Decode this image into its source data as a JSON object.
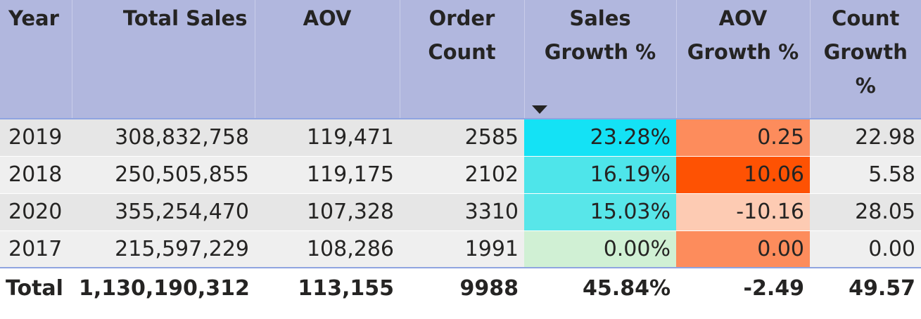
{
  "headers": {
    "year": "Year",
    "total_sales": "Total Sales",
    "aov": "AOV",
    "order_count": "Order Count",
    "sales_growth": "Sales Growth %",
    "aov_growth": "AOV Growth %",
    "count_growth": "Count Growth %"
  },
  "rows": [
    {
      "year": "2019",
      "total_sales": "308,832,758",
      "aov": "119,471",
      "order_count": "2585",
      "sales_growth": "23.28%",
      "aov_growth": "0.25",
      "count_growth": "22.98",
      "sales_growth_color": "#14e2f5",
      "aov_growth_color": "#fd8c5c"
    },
    {
      "year": "2018",
      "total_sales": "250,505,855",
      "aov": "119,175",
      "order_count": "2102",
      "sales_growth": "16.19%",
      "aov_growth": "10.06",
      "count_growth": "5.58",
      "sales_growth_color": "#4ee5ea",
      "aov_growth_color": "#fe5203"
    },
    {
      "year": "2020",
      "total_sales": "355,254,470",
      "aov": "107,328",
      "order_count": "3310",
      "sales_growth": "15.03%",
      "aov_growth": "-10.16",
      "count_growth": "28.05",
      "sales_growth_color": "#58e6e9",
      "aov_growth_color": "#fdcbb3"
    },
    {
      "year": "2017",
      "total_sales": "215,597,229",
      "aov": "108,286",
      "order_count": "1991",
      "sales_growth": "0.00%",
      "aov_growth": "0.00",
      "count_growth": "0.00",
      "sales_growth_color": "#d0f0d4",
      "aov_growth_color": "#fd8c5c"
    }
  ],
  "total": {
    "label": "Total",
    "total_sales": "1,130,190,312",
    "aov": "113,155",
    "order_count": "9988",
    "sales_growth": "45.84%",
    "aov_growth": "-2.49",
    "count_growth": "49.57"
  },
  "colors": {
    "header_bg": "#b1b7de",
    "accent_border": "#8fa4e0",
    "row_odd": "#e6e6e6",
    "row_even": "#efefef"
  },
  "icons": {
    "sort_indicator": "sort-descending-icon"
  }
}
